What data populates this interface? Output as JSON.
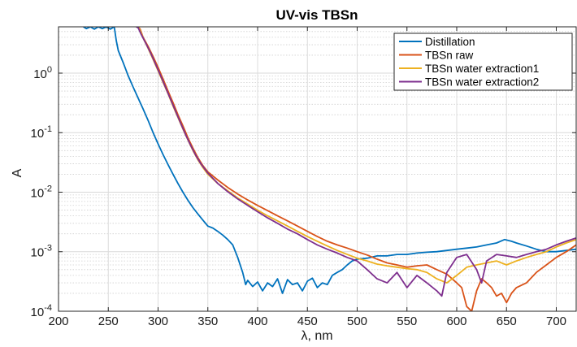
{
  "chart_data": {
    "type": "line",
    "title": "UV-vis TBSn",
    "xlabel": "λ, nm",
    "ylabel": "A",
    "xlim": [
      200,
      720
    ],
    "ylim": [
      0.0001,
      6
    ],
    "yscale": "log",
    "grid": true,
    "minor_grid": true,
    "legend_position": "top-right",
    "x_ticks": [
      "200",
      "250",
      "300",
      "350",
      "400",
      "450",
      "500",
      "550",
      "600",
      "650",
      "700"
    ],
    "y_ticks": [
      {
        "base": "10",
        "exp": "-4"
      },
      {
        "base": "10",
        "exp": "-3"
      },
      {
        "base": "10",
        "exp": "-2"
      },
      {
        "base": "10",
        "exp": "-1"
      },
      {
        "base": "10",
        "exp": "0"
      }
    ],
    "series": [
      {
        "name": "Distillation",
        "color": "#0072BD",
        "points": [
          [
            225,
            6
          ],
          [
            228,
            5.6
          ],
          [
            232,
            6
          ],
          [
            236,
            5.5
          ],
          [
            240,
            6
          ],
          [
            244,
            5.6
          ],
          [
            248,
            6
          ],
          [
            252,
            5.5
          ],
          [
            256,
            6
          ],
          [
            258,
            3.5
          ],
          [
            260,
            2.4
          ],
          [
            265,
            1.5
          ],
          [
            270,
            0.9
          ],
          [
            275,
            0.58
          ],
          [
            280,
            0.38
          ],
          [
            285,
            0.25
          ],
          [
            290,
            0.16
          ],
          [
            295,
            0.1
          ],
          [
            300,
            0.065
          ],
          [
            305,
            0.043
          ],
          [
            310,
            0.029
          ],
          [
            315,
            0.02
          ],
          [
            320,
            0.014
          ],
          [
            325,
            0.01
          ],
          [
            330,
            0.0073
          ],
          [
            335,
            0.0055
          ],
          [
            340,
            0.0043
          ],
          [
            345,
            0.0034
          ],
          [
            350,
            0.0027
          ],
          [
            355,
            0.0025
          ],
          [
            360,
            0.0022
          ],
          [
            365,
            0.0019
          ],
          [
            370,
            0.0016
          ],
          [
            375,
            0.0013
          ],
          [
            380,
            0.0008
          ],
          [
            385,
            0.00045
          ],
          [
            388,
            0.00028
          ],
          [
            390,
            0.00033
          ],
          [
            395,
            0.00026
          ],
          [
            400,
            0.00031
          ],
          [
            405,
            0.00022
          ],
          [
            410,
            0.0003
          ],
          [
            415,
            0.00026
          ],
          [
            420,
            0.00035
          ],
          [
            425,
            0.0002
          ],
          [
            430,
            0.00034
          ],
          [
            435,
            0.00028
          ],
          [
            440,
            0.0003
          ],
          [
            445,
            0.00022
          ],
          [
            450,
            0.00032
          ],
          [
            455,
            0.00036
          ],
          [
            460,
            0.00025
          ],
          [
            465,
            0.0003
          ],
          [
            470,
            0.00028
          ],
          [
            475,
            0.0004
          ],
          [
            480,
            0.00045
          ],
          [
            485,
            0.0005
          ],
          [
            490,
            0.0006
          ],
          [
            495,
            0.0007
          ],
          [
            500,
            0.00075
          ],
          [
            510,
            0.00078
          ],
          [
            520,
            0.00085
          ],
          [
            530,
            0.00085
          ],
          [
            540,
            0.0009
          ],
          [
            550,
            0.0009
          ],
          [
            560,
            0.00095
          ],
          [
            570,
            0.00098
          ],
          [
            580,
            0.001
          ],
          [
            590,
            0.00105
          ],
          [
            600,
            0.0011
          ],
          [
            610,
            0.00115
          ],
          [
            620,
            0.0012
          ],
          [
            630,
            0.0013
          ],
          [
            640,
            0.0014
          ],
          [
            648,
            0.0016
          ],
          [
            655,
            0.0015
          ],
          [
            660,
            0.0014
          ],
          [
            670,
            0.00125
          ],
          [
            680,
            0.0011
          ],
          [
            690,
            0.001
          ],
          [
            700,
            0.001
          ],
          [
            710,
            0.00105
          ],
          [
            720,
            0.0011
          ]
        ]
      },
      {
        "name": "TBSn raw",
        "color": "#D95319",
        "points": [
          [
            280,
            6
          ],
          [
            282,
            5.5
          ],
          [
            285,
            4
          ],
          [
            290,
            2.8
          ],
          [
            295,
            1.9
          ],
          [
            300,
            1.25
          ],
          [
            305,
            0.8
          ],
          [
            310,
            0.5
          ],
          [
            315,
            0.32
          ],
          [
            320,
            0.2
          ],
          [
            325,
            0.13
          ],
          [
            330,
            0.082
          ],
          [
            335,
            0.055
          ],
          [
            340,
            0.038
          ],
          [
            345,
            0.028
          ],
          [
            350,
            0.022
          ],
          [
            360,
            0.016
          ],
          [
            370,
            0.012
          ],
          [
            380,
            0.0093
          ],
          [
            390,
            0.0074
          ],
          [
            400,
            0.006
          ],
          [
            410,
            0.0049
          ],
          [
            420,
            0.004
          ],
          [
            430,
            0.0033
          ],
          [
            440,
            0.0027
          ],
          [
            450,
            0.0022
          ],
          [
            460,
            0.0018
          ],
          [
            470,
            0.0015
          ],
          [
            480,
            0.0013
          ],
          [
            490,
            0.00115
          ],
          [
            500,
            0.001
          ],
          [
            510,
            0.00088
          ],
          [
            520,
            0.00075
          ],
          [
            530,
            0.00065
          ],
          [
            540,
            0.0006
          ],
          [
            550,
            0.00055
          ],
          [
            560,
            0.00058
          ],
          [
            570,
            0.0006
          ],
          [
            580,
            0.0005
          ],
          [
            590,
            0.00042
          ],
          [
            600,
            0.0003
          ],
          [
            605,
            0.00025
          ],
          [
            610,
            0.00012
          ],
          [
            615,
            0.0001
          ],
          [
            620,
            0.00022
          ],
          [
            625,
            0.00035
          ],
          [
            630,
            0.0003
          ],
          [
            635,
            0.00025
          ],
          [
            640,
            0.00018
          ],
          [
            645,
            0.0002
          ],
          [
            650,
            0.00014
          ],
          [
            655,
            0.0002
          ],
          [
            660,
            0.00025
          ],
          [
            670,
            0.0003
          ],
          [
            680,
            0.00045
          ],
          [
            690,
            0.0006
          ],
          [
            700,
            0.0008
          ],
          [
            710,
            0.001
          ],
          [
            720,
            0.0013
          ]
        ]
      },
      {
        "name": "TBSn water extraction1",
        "color": "#EDB120",
        "points": [
          [
            280,
            6
          ],
          [
            282,
            5.2
          ],
          [
            285,
            3.9
          ],
          [
            290,
            2.6
          ],
          [
            295,
            1.7
          ],
          [
            300,
            1.1
          ],
          [
            305,
            0.7
          ],
          [
            310,
            0.45
          ],
          [
            315,
            0.28
          ],
          [
            320,
            0.18
          ],
          [
            325,
            0.115
          ],
          [
            330,
            0.075
          ],
          [
            335,
            0.05
          ],
          [
            340,
            0.035
          ],
          [
            345,
            0.026
          ],
          [
            350,
            0.02
          ],
          [
            360,
            0.014
          ],
          [
            370,
            0.0105
          ],
          [
            380,
            0.008
          ],
          [
            390,
            0.0063
          ],
          [
            400,
            0.005
          ],
          [
            410,
            0.004
          ],
          [
            420,
            0.0033
          ],
          [
            430,
            0.0027
          ],
          [
            440,
            0.0022
          ],
          [
            450,
            0.0018
          ],
          [
            460,
            0.0015
          ],
          [
            470,
            0.00125
          ],
          [
            480,
            0.00105
          ],
          [
            490,
            0.0009
          ],
          [
            500,
            0.00078
          ],
          [
            510,
            0.0007
          ],
          [
            520,
            0.00062
          ],
          [
            530,
            0.00058
          ],
          [
            540,
            0.00055
          ],
          [
            550,
            0.00052
          ],
          [
            560,
            0.0005
          ],
          [
            570,
            0.00045
          ],
          [
            580,
            0.00035
          ],
          [
            590,
            0.0003
          ],
          [
            600,
            0.0004
          ],
          [
            610,
            0.00055
          ],
          [
            620,
            0.0006
          ],
          [
            630,
            0.00065
          ],
          [
            640,
            0.0007
          ],
          [
            650,
            0.0006
          ],
          [
            660,
            0.0007
          ],
          [
            670,
            0.0008
          ],
          [
            680,
            0.0009
          ],
          [
            690,
            0.001
          ],
          [
            700,
            0.0012
          ],
          [
            710,
            0.0014
          ],
          [
            720,
            0.0016
          ]
        ]
      },
      {
        "name": "TBSn water extraction2",
        "color": "#7E2F8E",
        "points": [
          [
            278,
            6
          ],
          [
            280,
            5.8
          ],
          [
            283,
            4.5
          ],
          [
            288,
            3.1
          ],
          [
            293,
            2.1
          ],
          [
            298,
            1.35
          ],
          [
            303,
            0.87
          ],
          [
            308,
            0.55
          ],
          [
            313,
            0.35
          ],
          [
            318,
            0.22
          ],
          [
            323,
            0.14
          ],
          [
            328,
            0.09
          ],
          [
            333,
            0.06
          ],
          [
            338,
            0.041
          ],
          [
            343,
            0.03
          ],
          [
            350,
            0.021
          ],
          [
            360,
            0.014
          ],
          [
            370,
            0.0102
          ],
          [
            380,
            0.0077
          ],
          [
            390,
            0.006
          ],
          [
            400,
            0.0047
          ],
          [
            410,
            0.0037
          ],
          [
            420,
            0.003
          ],
          [
            430,
            0.0024
          ],
          [
            440,
            0.002
          ],
          [
            450,
            0.0016
          ],
          [
            460,
            0.0013
          ],
          [
            470,
            0.0011
          ],
          [
            480,
            0.00095
          ],
          [
            490,
            0.0008
          ],
          [
            500,
            0.0007
          ],
          [
            510,
            0.0005
          ],
          [
            520,
            0.00035
          ],
          [
            530,
            0.0003
          ],
          [
            540,
            0.00045
          ],
          [
            550,
            0.00025
          ],
          [
            560,
            0.0004
          ],
          [
            570,
            0.0003
          ],
          [
            580,
            0.00022
          ],
          [
            585,
            0.00018
          ],
          [
            590,
            0.00045
          ],
          [
            600,
            0.0008
          ],
          [
            610,
            0.0009
          ],
          [
            620,
            0.0005
          ],
          [
            625,
            0.0003
          ],
          [
            630,
            0.0007
          ],
          [
            640,
            0.0009
          ],
          [
            650,
            0.00085
          ],
          [
            660,
            0.0008
          ],
          [
            670,
            0.0009
          ],
          [
            680,
            0.001
          ],
          [
            690,
            0.0011
          ],
          [
            700,
            0.0013
          ],
          [
            710,
            0.0015
          ],
          [
            720,
            0.0017
          ]
        ]
      }
    ]
  }
}
